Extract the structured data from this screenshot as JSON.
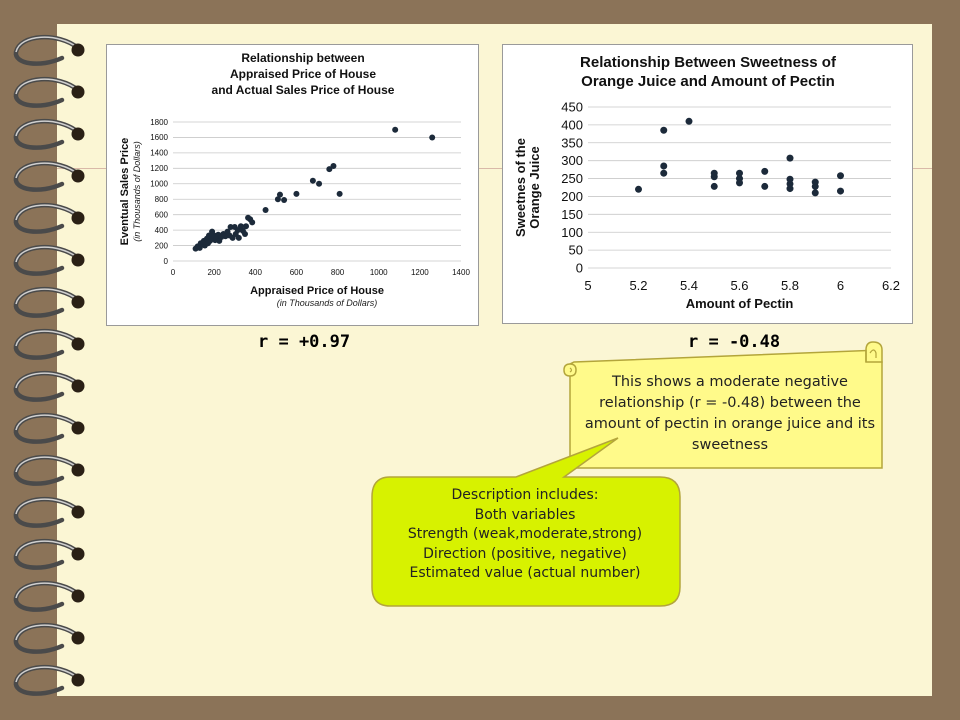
{
  "chart_data": [
    {
      "type": "scatter",
      "title": [
        "Relationship between",
        "Appraised Price of House",
        "and Actual Sales Price of House"
      ],
      "xlabel": "Appraised Price of House",
      "xlabel_sub": "(in Thousands of Dollars)",
      "ylabel": "Eventual Sales Price",
      "ylabel_sub": "(in Thousands of Dollars)",
      "xlim": [
        0,
        1400
      ],
      "ylim": [
        0,
        1800
      ],
      "xticks": [
        "0",
        "200",
        "400",
        "600",
        "800",
        "1000",
        "1200",
        "1400"
      ],
      "yticks": [
        "0",
        "200",
        "400",
        "600",
        "800",
        "1000",
        "1200",
        "1400",
        "1600",
        "1800"
      ],
      "grid": "horizontal",
      "points": [
        [
          110,
          160
        ],
        [
          120,
          190
        ],
        [
          130,
          170
        ],
        [
          135,
          230
        ],
        [
          140,
          210
        ],
        [
          150,
          260
        ],
        [
          155,
          200
        ],
        [
          160,
          240
        ],
        [
          165,
          290
        ],
        [
          170,
          230
        ],
        [
          175,
          330
        ],
        [
          180,
          260
        ],
        [
          185,
          300
        ],
        [
          190,
          380
        ],
        [
          200,
          330
        ],
        [
          205,
          270
        ],
        [
          210,
          300
        ],
        [
          220,
          340
        ],
        [
          225,
          260
        ],
        [
          235,
          310
        ],
        [
          245,
          350
        ],
        [
          255,
          320
        ],
        [
          265,
          380
        ],
        [
          275,
          330
        ],
        [
          280,
          440
        ],
        [
          290,
          300
        ],
        [
          300,
          440
        ],
        [
          305,
          350
        ],
        [
          315,
          400
        ],
        [
          320,
          300
        ],
        [
          330,
          450
        ],
        [
          340,
          390
        ],
        [
          350,
          350
        ],
        [
          355,
          450
        ],
        [
          365,
          560
        ],
        [
          375,
          540
        ],
        [
          385,
          500
        ],
        [
          450,
          660
        ],
        [
          510,
          800
        ],
        [
          520,
          860
        ],
        [
          540,
          790
        ],
        [
          600,
          870
        ],
        [
          680,
          1040
        ],
        [
          710,
          1000
        ],
        [
          760,
          1190
        ],
        [
          780,
          1230
        ],
        [
          810,
          870
        ],
        [
          1080,
          1700
        ],
        [
          1260,
          1600
        ]
      ],
      "r_label": "r = +0.97"
    },
    {
      "type": "scatter",
      "title": [
        "Relationship Between Sweetness of",
        "Orange Juice and Amount of Pectin"
      ],
      "xlabel": "Amount of Pectin",
      "ylabel": [
        "Sweetnes of the",
        "Orange Juice"
      ],
      "xlim": [
        5,
        6.2
      ],
      "ylim": [
        0,
        450
      ],
      "xticks": [
        "5",
        "5.2",
        "5.4",
        "5.6",
        "5.8",
        "6",
        "6.2"
      ],
      "yticks": [
        "0",
        "50",
        "100",
        "150",
        "200",
        "250",
        "300",
        "350",
        "400",
        "450"
      ],
      "grid": "horizontal",
      "points": [
        [
          5.2,
          220
        ],
        [
          5.3,
          385
        ],
        [
          5.3,
          285
        ],
        [
          5.3,
          265
        ],
        [
          5.4,
          410
        ],
        [
          5.5,
          265
        ],
        [
          5.5,
          255
        ],
        [
          5.5,
          228
        ],
        [
          5.6,
          265
        ],
        [
          5.6,
          250
        ],
        [
          5.6,
          238
        ],
        [
          5.7,
          270
        ],
        [
          5.7,
          228
        ],
        [
          5.8,
          307
        ],
        [
          5.8,
          248
        ],
        [
          5.8,
          235
        ],
        [
          5.8,
          222
        ],
        [
          5.9,
          240
        ],
        [
          5.9,
          228
        ],
        [
          5.9,
          210
        ],
        [
          6.0,
          258
        ],
        [
          6.0,
          215
        ]
      ],
      "r_label": "r = -0.48"
    }
  ],
  "callouts": {
    "scroll_note": "This shows a moderate negative relationship (r = -0.48) between the amount of pectin in orange juice and its sweetness",
    "description_lines": [
      "Description includes:",
      "Both variables",
      "Strength (weak,moderate,strong)",
      "Direction (positive, negative)",
      "Estimated value (actual number)"
    ]
  },
  "colors": {
    "background": "#8b7358",
    "paper": "#fbf6d4",
    "callout_fill": "#fffa8a",
    "callout_stroke": "#b3a53b",
    "description_fill": "#d7f200",
    "point": "#1c2a3a"
  }
}
